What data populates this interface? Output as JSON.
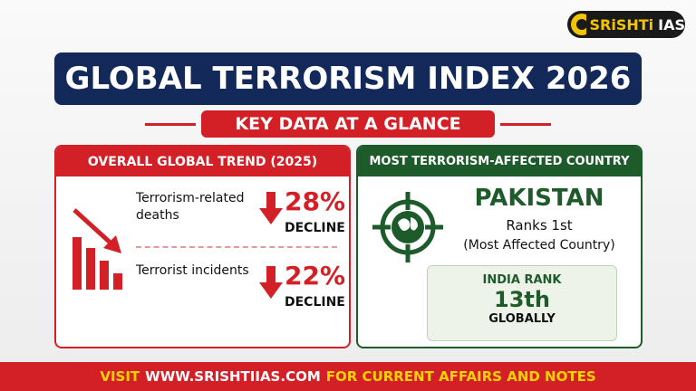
{
  "logo": {
    "name": "SRiSHTi",
    "tag": "IAS"
  },
  "header": {
    "title": "GLOBAL TERRORISM INDEX 2026",
    "subtitle": "KEY DATA AT A GLANCE"
  },
  "left_panel": {
    "title": "OVERALL GLOBAL TREND (2025)",
    "items": [
      {
        "label": "Terrorism-related deaths",
        "value": "28%",
        "change": "DECLINE"
      },
      {
        "label": "Terrorist incidents",
        "value": "22%",
        "change": "DECLINE"
      }
    ]
  },
  "right_panel": {
    "title": "MOST TERRORISM-AFFECTED COUNTRY",
    "country": "PAKISTAN",
    "rank": "Ranks 1st",
    "note": "(Most Affected Country)",
    "india": {
      "label": "INDIA RANK",
      "rank": "13th",
      "scope": "GLOBALLY"
    }
  },
  "footer": {
    "prefix": "VISIT",
    "url": "WWW.SRISHTIIAS.COM",
    "suffix": "FOR CURRENT AFFAIRS AND NOTES"
  }
}
